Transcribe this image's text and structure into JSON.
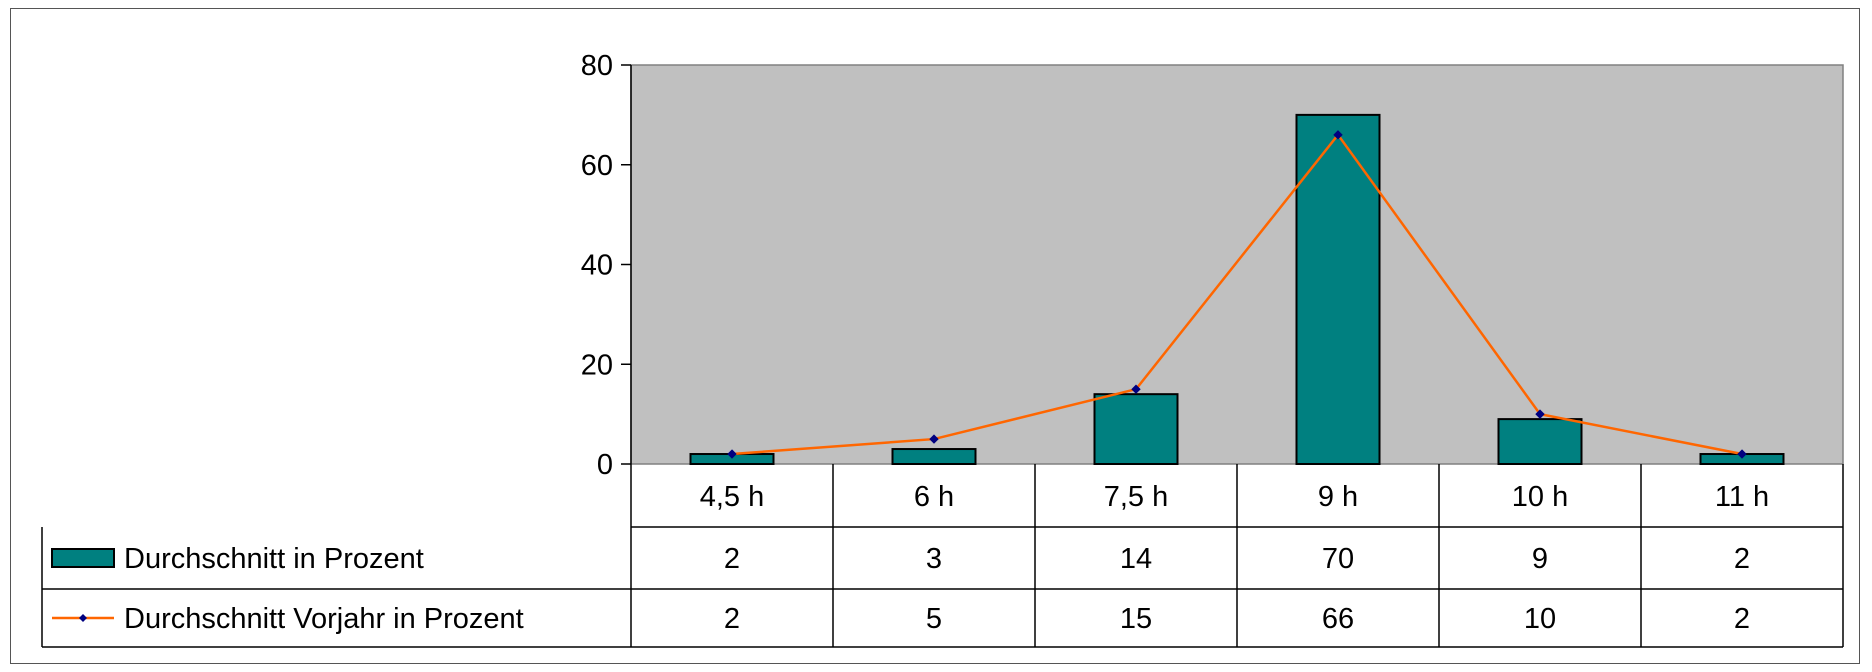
{
  "chart_data": {
    "type": "bar",
    "categories": [
      "4,5 h",
      "6 h",
      "7,5 h",
      "9 h",
      "10 h",
      "11 h"
    ],
    "series": [
      {
        "name": "Durchschnitt in Prozent",
        "type": "bar",
        "color": "#008080",
        "values": [
          2,
          3,
          14,
          70,
          9,
          2
        ]
      },
      {
        "name": "Durchschnitt Vorjahr in Prozent",
        "type": "line",
        "color": "#FF6600",
        "marker_color": "#000080",
        "values": [
          2,
          5,
          15,
          66,
          10,
          2
        ]
      }
    ],
    "ylim": [
      0,
      80
    ],
    "yticks": [
      0,
      20,
      40,
      60,
      80
    ],
    "grid": false,
    "legend": "data-table",
    "plot_background": "#C0C0C0"
  }
}
